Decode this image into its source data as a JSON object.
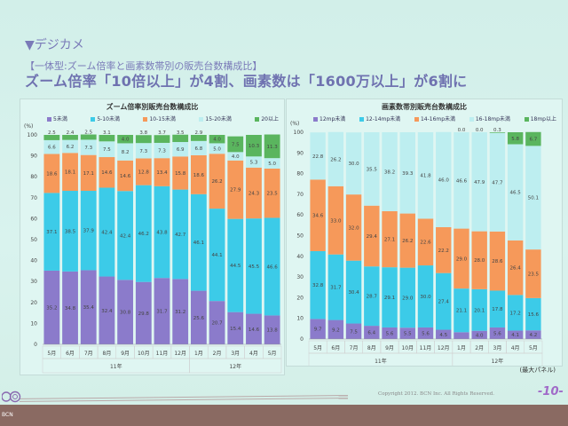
{
  "slide": {
    "heading": "▼デジカメ",
    "subheading": "【一体型:ズーム倍率と画素数帯別の販売台数構成比】",
    "headline": "ズーム倍率「10倍以上」が4割、画素数は「1600万以上」が6割に",
    "note": "(最大パネル)",
    "copyright": "Copyright 2012. BCN Inc. All Rights Reserved.",
    "page_number": "-10-",
    "logo_text": "BCN"
  },
  "colors": {
    "s1": "#8b7bcb",
    "s2": "#3ccbe8",
    "s3": "#f6995a",
    "s4": "#bdeef0",
    "s5": "#5ab55e"
  },
  "chart_data": [
    {
      "type": "bar",
      "stacked": true,
      "title": "ズーム倍率別販売台数構成比",
      "ylabel": "(%)",
      "ylim": [
        0,
        100
      ],
      "yticks": [
        "0",
        "10",
        "20",
        "30",
        "40",
        "50",
        "60",
        "70",
        "80",
        "90",
        "100"
      ],
      "categories": [
        "5月",
        "6月",
        "7月",
        "8月",
        "9月",
        "10月",
        "11月",
        "12月",
        "1月",
        "2月",
        "3月",
        "4月",
        "5月"
      ],
      "year_groups": [
        {
          "label": "11年",
          "count": 8
        },
        {
          "label": "12年",
          "count": 5
        }
      ],
      "series": [
        {
          "name": "5未満",
          "values": [
            35.2,
            34.8,
            35.4,
            32.4,
            30.8,
            29.8,
            31.7,
            31.2,
            25.6,
            20.7,
            15.4,
            14.6,
            13.8
          ]
        },
        {
          "name": "5-10未満",
          "values": [
            37.1,
            38.5,
            37.9,
            42.4,
            42.4,
            46.2,
            43.8,
            42.7,
            46.1,
            44.1,
            44.5,
            45.5,
            46.6
          ]
        },
        {
          "name": "10-15未満",
          "values": [
            18.6,
            18.1,
            17.1,
            14.6,
            14.6,
            12.8,
            13.4,
            15.8,
            18.6,
            26.2,
            27.9,
            24.3,
            23.5
          ]
        },
        {
          "name": "15-20未満",
          "values": [
            6.6,
            6.2,
            7.3,
            7.5,
            8.2,
            7.3,
            7.3,
            6.9,
            6.8,
            5.0,
            4.0,
            5.3,
            5.0
          ]
        },
        {
          "name": "20以上",
          "values": [
            2.5,
            2.4,
            2.5,
            3.1,
            4.0,
            3.8,
            3.7,
            3.5,
            2.9,
            4.0,
            7.5,
            10.3,
            11.3
          ]
        }
      ]
    },
    {
      "type": "bar",
      "stacked": true,
      "title": "画素数帯別販売台数構成比",
      "ylabel": "(%)",
      "ylim": [
        0,
        100
      ],
      "yticks": [
        "0",
        "10",
        "20",
        "30",
        "40",
        "50",
        "60",
        "70",
        "80",
        "90",
        "100"
      ],
      "categories": [
        "5月",
        "6月",
        "7月",
        "8月",
        "9月",
        "10月",
        "11月",
        "12月",
        "1月",
        "2月",
        "3月",
        "4月",
        "5月"
      ],
      "year_groups": [
        {
          "label": "11年",
          "count": 8
        },
        {
          "label": "12年",
          "count": 5
        }
      ],
      "series": [
        {
          "name": "12mp未満",
          "values": [
            9.7,
            9.2,
            7.5,
            6.4,
            5.6,
            5.5,
            5.6,
            4.5,
            3.3,
            4.0,
            5.6,
            4.1,
            4.2
          ]
        },
        {
          "name": "12-14mp未満",
          "values": [
            32.8,
            31.7,
            30.4,
            28.7,
            29.1,
            29.0,
            30.0,
            27.4,
            21.1,
            20.1,
            17.8,
            17.2,
            15.6
          ]
        },
        {
          "name": "14-16mp未満",
          "values": [
            34.6,
            33.0,
            32.0,
            29.4,
            27.1,
            26.2,
            22.6,
            22.2,
            29.0,
            28.0,
            28.6,
            26.4,
            23.5
          ]
        },
        {
          "name": "16-18mp未満",
          "values": [
            22.8,
            26.2,
            30.0,
            35.5,
            38.2,
            39.3,
            41.8,
            46.0,
            46.6,
            47.9,
            47.7,
            46.5,
            50.1
          ]
        },
        {
          "name": "18mp以上",
          "values": [
            null,
            null,
            null,
            null,
            null,
            null,
            null,
            null,
            0.0,
            0.0,
            0.3,
            5.8,
            6.7
          ]
        }
      ]
    }
  ]
}
